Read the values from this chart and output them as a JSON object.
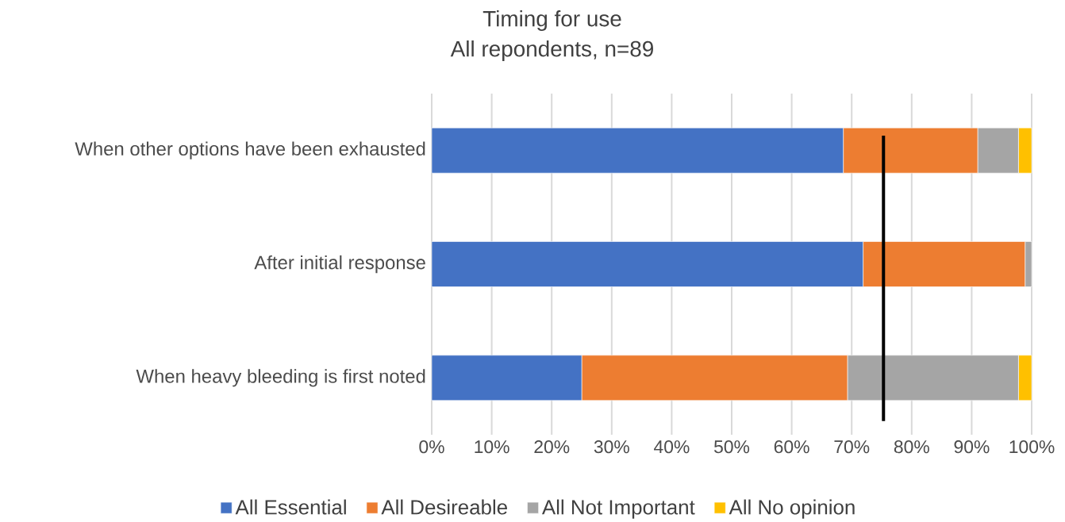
{
  "chart_data": {
    "type": "bar",
    "orientation": "horizontal",
    "stacked": true,
    "title": "Timing for use",
    "subtitle": "All repondents, n=89",
    "categories": [
      "When  other options have been exhausted",
      "After initial response",
      "When heavy bleeding is first noted"
    ],
    "series": [
      {
        "name": "All Essential",
        "color": "#4472c4",
        "values": [
          68.6,
          71.9,
          25.0
        ]
      },
      {
        "name": "All Desireable",
        "color": "#ed7d31",
        "values": [
          22.4,
          27.0,
          44.3
        ]
      },
      {
        "name": "All Not Important",
        "color": "#a5a5a5",
        "values": [
          6.8,
          1.1,
          28.5
        ]
      },
      {
        "name": "All No opinion",
        "color": "#ffc000",
        "values": [
          2.2,
          0,
          2.2
        ]
      }
    ],
    "xlim": [
      0,
      100
    ],
    "xticks": [
      {
        "value": 0,
        "label": "0%"
      },
      {
        "value": 10,
        "label": "10%"
      },
      {
        "value": 20,
        "label": "20%"
      },
      {
        "value": 30,
        "label": "30%"
      },
      {
        "value": 40,
        "label": "40%"
      },
      {
        "value": 50,
        "label": "50%"
      },
      {
        "value": 60,
        "label": "60%"
      },
      {
        "value": 70,
        "label": "70%"
      },
      {
        "value": 80,
        "label": "80%"
      },
      {
        "value": 90,
        "label": "90%"
      },
      {
        "value": 100,
        "label": "100%"
      }
    ],
    "ref_lines": [
      {
        "axis": "x",
        "value": 75.3,
        "color": "#000000"
      }
    ],
    "grid": "x",
    "legend": "bottom"
  }
}
